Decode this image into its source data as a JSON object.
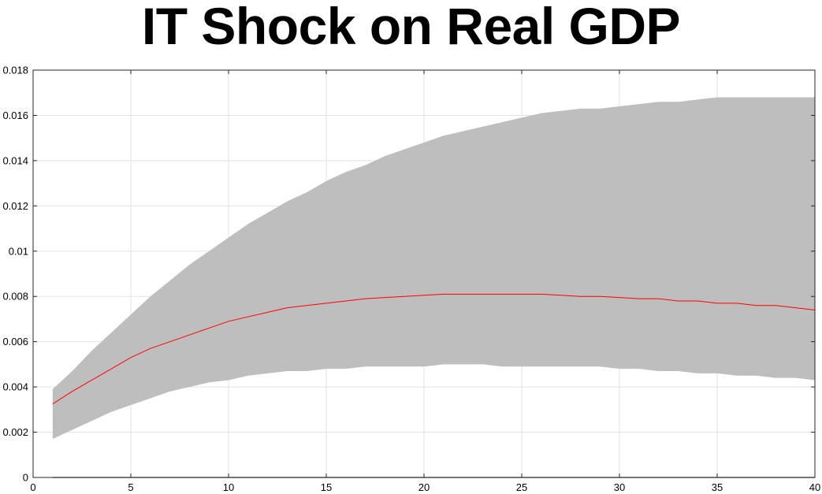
{
  "chart_data": {
    "type": "area",
    "title": "IT Shock on Real GDP",
    "xlabel": "",
    "ylabel": "",
    "xlim": [
      0,
      40
    ],
    "ylim": [
      0,
      0.018
    ],
    "grid": true,
    "x_ticks": [
      "0",
      "5",
      "10",
      "15",
      "20",
      "25",
      "30",
      "35",
      "40"
    ],
    "y_ticks": [
      "0",
      "0.002",
      "0.004",
      "0.006",
      "0.008",
      "0.01",
      "0.012",
      "0.014",
      "0.016",
      "0.018"
    ],
    "x": [
      1,
      2,
      3,
      4,
      5,
      6,
      7,
      8,
      9,
      10,
      11,
      12,
      13,
      14,
      15,
      16,
      17,
      18,
      19,
      20,
      21,
      22,
      23,
      24,
      25,
      26,
      27,
      28,
      29,
      30,
      31,
      32,
      33,
      34,
      35,
      36,
      37,
      38,
      39,
      40
    ],
    "series": [
      {
        "role": "band_upper",
        "color": "#bebebe",
        "values": [
          0.0039,
          0.0047,
          0.0056,
          0.0064,
          0.0072,
          0.008,
          0.0087,
          0.0094,
          0.01,
          0.0106,
          0.0112,
          0.0117,
          0.0122,
          0.0126,
          0.0131,
          0.0135,
          0.0138,
          0.0142,
          0.0145,
          0.0148,
          0.0151,
          0.0153,
          0.0155,
          0.0157,
          0.0159,
          0.0161,
          0.0162,
          0.0163,
          0.0163,
          0.0164,
          0.0165,
          0.0166,
          0.0166,
          0.0167,
          0.0168,
          0.0168,
          0.0168,
          0.0168,
          0.0168,
          0.0168
        ]
      },
      {
        "role": "band_lower",
        "color": "#bebebe",
        "values": [
          0.0017,
          0.0021,
          0.0025,
          0.0029,
          0.0032,
          0.0035,
          0.0038,
          0.004,
          0.0042,
          0.0043,
          0.0045,
          0.0046,
          0.0047,
          0.0047,
          0.0048,
          0.0048,
          0.0049,
          0.0049,
          0.0049,
          0.0049,
          0.005,
          0.005,
          0.005,
          0.0049,
          0.0049,
          0.0049,
          0.0049,
          0.0049,
          0.0049,
          0.0048,
          0.0048,
          0.0047,
          0.0047,
          0.0046,
          0.0046,
          0.0045,
          0.0045,
          0.0044,
          0.0044,
          0.0043
        ]
      },
      {
        "role": "median",
        "color": "#ff0000",
        "values": [
          0.00325,
          0.0038,
          0.0043,
          0.0048,
          0.0053,
          0.0057,
          0.006,
          0.0063,
          0.0066,
          0.0069,
          0.0071,
          0.0073,
          0.0075,
          0.0076,
          0.0077,
          0.0078,
          0.0079,
          0.00795,
          0.008,
          0.00805,
          0.0081,
          0.0081,
          0.0081,
          0.0081,
          0.0081,
          0.0081,
          0.00805,
          0.008,
          0.008,
          0.00795,
          0.0079,
          0.0079,
          0.0078,
          0.0078,
          0.0077,
          0.0077,
          0.0076,
          0.0076,
          0.0075,
          0.0074
        ]
      },
      {
        "role": "zero_line",
        "color": "#00008b",
        "values": [
          0,
          0,
          0,
          0,
          0,
          0,
          0,
          0,
          0,
          0,
          0,
          0,
          0,
          0,
          0,
          0,
          0,
          0,
          0,
          0,
          0,
          0,
          0,
          0,
          0,
          0,
          0,
          0,
          0,
          0,
          0,
          0,
          0,
          0,
          0,
          0,
          0,
          0,
          0,
          0
        ]
      }
    ]
  }
}
